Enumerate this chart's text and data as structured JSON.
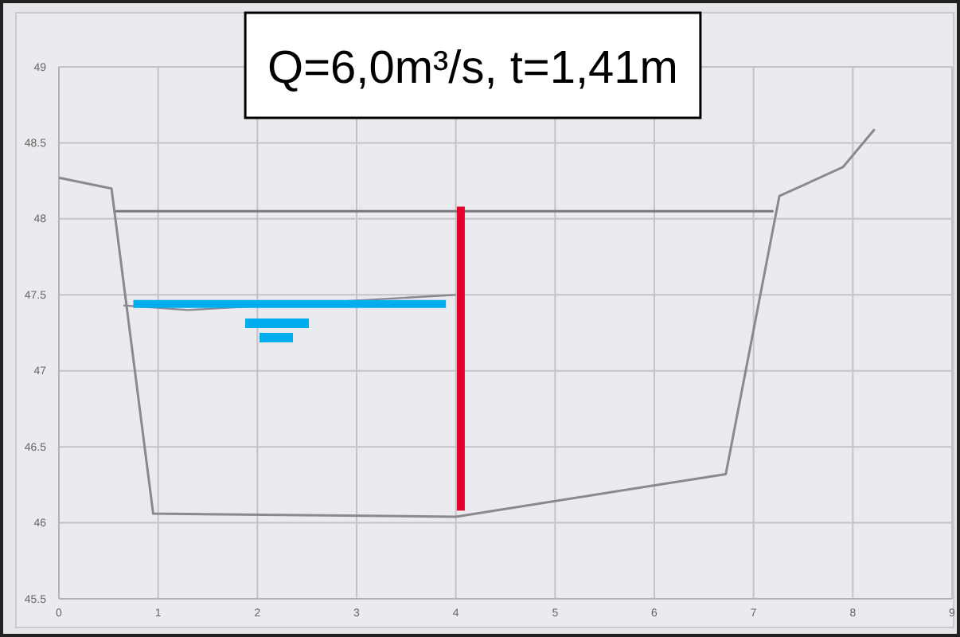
{
  "chart_data": {
    "type": "line",
    "title": "Q=6,0m³/s, t=1,41m",
    "xlim": [
      0,
      9
    ],
    "xticks": [
      0,
      1,
      2,
      3,
      4,
      5,
      6,
      7,
      8,
      9
    ],
    "ylim": [
      45.5,
      49
    ],
    "yticks": [
      45.5,
      46,
      46.5,
      47,
      47.5,
      48,
      48.5,
      49
    ],
    "grid": true,
    "marker": "none",
    "line_style": "solid",
    "series": [
      {
        "color": "#8a8a8e",
        "x": [
          0,
          0.53,
          0.95,
          4.0,
          6.72,
          7.26,
          7.9,
          8.22
        ],
        "values": [
          48.27,
          48.2,
          46.06,
          46.04,
          46.32,
          48.15,
          48.34,
          48.59
        ]
      },
      {
        "color": "#78787c",
        "x": [
          0.57,
          7.2
        ],
        "values": [
          48.05,
          48.05
        ]
      },
      {
        "color": "#8a8a8e",
        "x": [
          0.65,
          1.3,
          4.0
        ],
        "values": [
          47.43,
          47.4,
          47.5
        ]
      },
      {
        "color": "#00aeef",
        "x": [
          0.75,
          3.9
        ],
        "values": [
          47.44,
          47.44
        ]
      },
      {
        "color": "#e4002b",
        "x": [
          4.05,
          4.05
        ],
        "values": [
          46.08,
          48.08
        ]
      }
    ]
  }
}
